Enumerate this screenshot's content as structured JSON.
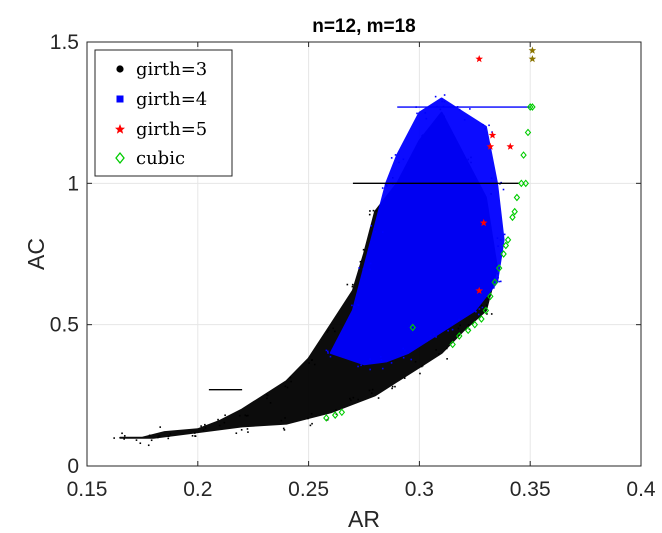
{
  "chart_data": {
    "type": "scatter",
    "title": "n=12, m=18",
    "xlabel": "AR",
    "ylabel": "AC",
    "xlim": [
      0.15,
      0.4
    ],
    "ylim": [
      0,
      1.5
    ],
    "xticks": [
      0.15,
      0.2,
      0.25,
      0.3,
      0.35,
      0.4
    ],
    "xtick_labels": [
      "0.15",
      "0.2",
      "0.25",
      "0.3",
      "0.35",
      "0.4"
    ],
    "yticks": [
      0,
      0.5,
      1,
      1.5
    ],
    "ytick_labels": [
      "0",
      "0.5",
      "1",
      "1.5"
    ],
    "grid": true,
    "legend_position": "top-left",
    "series": [
      {
        "name": "girth=3",
        "marker": "dot",
        "color": "#000000",
        "cloud": [
          [
            0.165,
            0.1
          ],
          [
            0.175,
            0.1
          ],
          [
            0.185,
            0.12
          ],
          [
            0.2,
            0.13
          ],
          [
            0.21,
            0.16
          ],
          [
            0.22,
            0.2
          ],
          [
            0.23,
            0.25
          ],
          [
            0.24,
            0.3
          ],
          [
            0.25,
            0.38
          ],
          [
            0.26,
            0.5
          ],
          [
            0.27,
            0.62
          ],
          [
            0.275,
            0.75
          ],
          [
            0.28,
            0.9
          ],
          [
            0.29,
            1.0
          ],
          [
            0.3,
            1.15
          ],
          [
            0.31,
            1.25
          ],
          [
            0.32,
            1.1
          ],
          [
            0.33,
            0.95
          ],
          [
            0.335,
            0.7
          ],
          [
            0.33,
            0.55
          ],
          [
            0.32,
            0.48
          ],
          [
            0.31,
            0.4
          ],
          [
            0.3,
            0.35
          ],
          [
            0.29,
            0.3
          ],
          [
            0.28,
            0.25
          ],
          [
            0.27,
            0.22
          ],
          [
            0.26,
            0.19
          ],
          [
            0.25,
            0.17
          ],
          [
            0.24,
            0.15
          ],
          [
            0.22,
            0.14
          ],
          [
            0.2,
            0.12
          ],
          [
            0.18,
            0.1
          ]
        ]
      },
      {
        "name": "girth=4",
        "marker": "square",
        "color": "#0000ff",
        "cloud": [
          [
            0.26,
            0.4
          ],
          [
            0.27,
            0.55
          ],
          [
            0.275,
            0.7
          ],
          [
            0.28,
            0.85
          ],
          [
            0.285,
            1.0
          ],
          [
            0.29,
            1.1
          ],
          [
            0.3,
            1.25
          ],
          [
            0.31,
            1.3
          ],
          [
            0.32,
            1.25
          ],
          [
            0.33,
            1.2
          ],
          [
            0.335,
            1.0
          ],
          [
            0.338,
            0.8
          ],
          [
            0.335,
            0.65
          ],
          [
            0.325,
            0.55
          ],
          [
            0.315,
            0.5
          ],
          [
            0.305,
            0.45
          ],
          [
            0.295,
            0.4
          ],
          [
            0.285,
            0.37
          ],
          [
            0.275,
            0.36
          ]
        ]
      },
      {
        "name": "girth=5",
        "marker": "star",
        "color": "#ff0000",
        "points": [
          [
            0.327,
            1.44
          ],
          [
            0.333,
            1.17
          ],
          [
            0.332,
            1.13
          ],
          [
            0.329,
            0.86
          ],
          [
            0.341,
            1.13
          ],
          [
            0.327,
            0.62
          ]
        ]
      },
      {
        "name": "cubic",
        "marker": "diamond",
        "color": "#00cc00",
        "points": [
          [
            0.258,
            0.17
          ],
          [
            0.262,
            0.18
          ],
          [
            0.265,
            0.19
          ],
          [
            0.297,
            0.49
          ],
          [
            0.315,
            0.43
          ],
          [
            0.318,
            0.46
          ],
          [
            0.322,
            0.48
          ],
          [
            0.325,
            0.5
          ],
          [
            0.328,
            0.52
          ],
          [
            0.33,
            0.55
          ],
          [
            0.332,
            0.6
          ],
          [
            0.334,
            0.65
          ],
          [
            0.336,
            0.7
          ],
          [
            0.338,
            0.75
          ],
          [
            0.34,
            0.8
          ],
          [
            0.342,
            0.88
          ],
          [
            0.344,
            0.95
          ],
          [
            0.346,
            1.0
          ],
          [
            0.348,
            1.0
          ],
          [
            0.347,
            1.1
          ],
          [
            0.349,
            1.18
          ],
          [
            0.351,
            1.27
          ],
          [
            0.35,
            1.27
          ],
          [
            0.343,
            0.9
          ],
          [
            0.339,
            0.78
          ]
        ]
      },
      {
        "name": "",
        "marker": "star",
        "color": "#8b7500",
        "points": [
          [
            0.351,
            1.47
          ],
          [
            0.351,
            1.44
          ]
        ]
      }
    ],
    "horizontal_segments": [
      {
        "y": 1.0,
        "x_start": 0.27,
        "x_end": 0.345,
        "color": "#000000"
      },
      {
        "y": 1.27,
        "x_start": 0.29,
        "x_end": 0.35,
        "color": "#0000ff"
      },
      {
        "y": 0.27,
        "x_start": 0.205,
        "x_end": 0.22,
        "color": "#000000"
      }
    ]
  }
}
